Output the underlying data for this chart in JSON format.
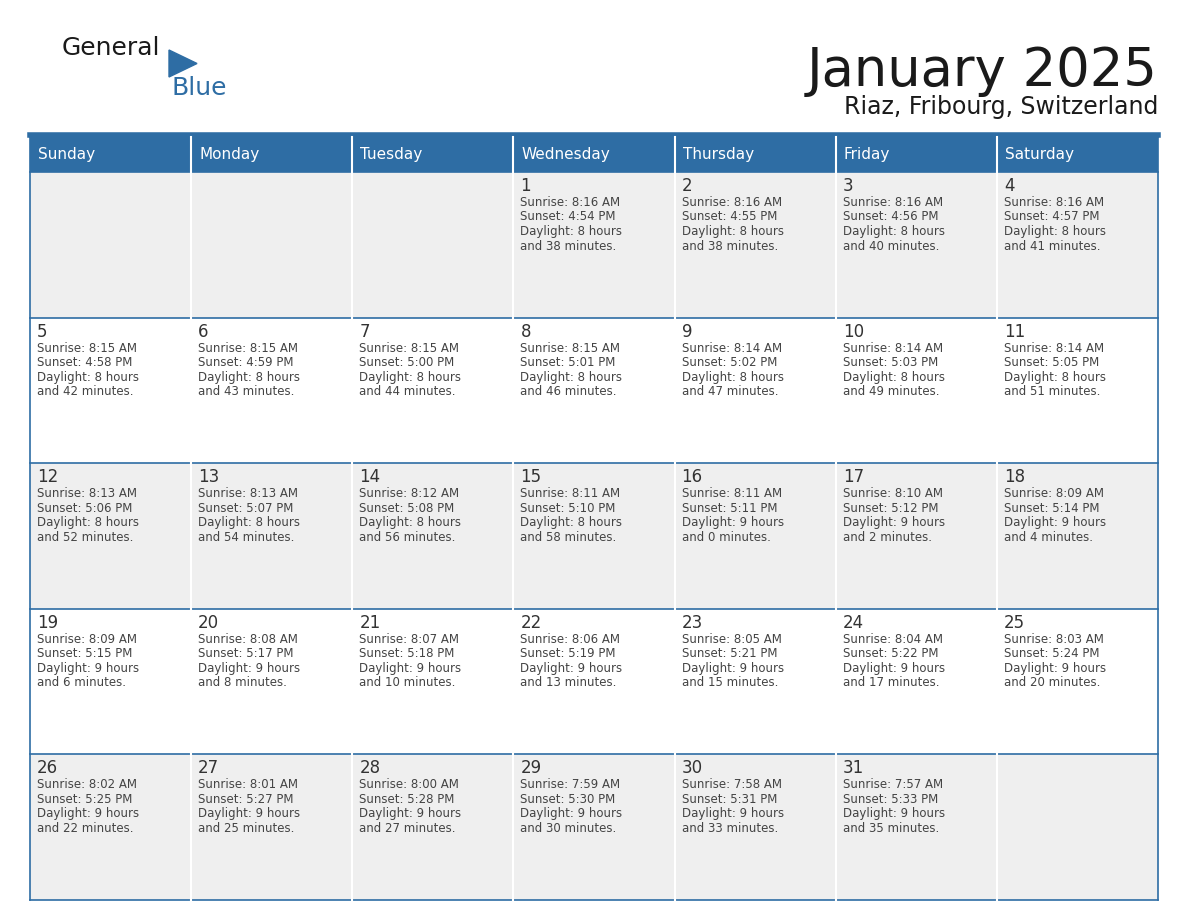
{
  "title": "January 2025",
  "subtitle": "Riaz, Fribourg, Switzerland",
  "days_of_week": [
    "Sunday",
    "Monday",
    "Tuesday",
    "Wednesday",
    "Thursday",
    "Friday",
    "Saturday"
  ],
  "header_bg": "#2E6DA4",
  "header_text": "#FFFFFF",
  "cell_bg_odd": "#EFEFEF",
  "cell_bg_even": "#FFFFFF",
  "cell_border": "#2E6DA4",
  "day_number_color": "#333333",
  "cell_text_color": "#444444",
  "title_color": "#1a1a1a",
  "subtitle_color": "#1a1a1a",
  "logo_general_color": "#1a1a1a",
  "logo_blue_color": "#2E6DA4",
  "separator_color": "#2E6DA4",
  "calendar_data": [
    [
      null,
      null,
      null,
      {
        "day": 1,
        "sunrise": "8:16 AM",
        "sunset": "4:54 PM",
        "daylight": "8 hours",
        "daylight2": "and 38 minutes."
      },
      {
        "day": 2,
        "sunrise": "8:16 AM",
        "sunset": "4:55 PM",
        "daylight": "8 hours",
        "daylight2": "and 38 minutes."
      },
      {
        "day": 3,
        "sunrise": "8:16 AM",
        "sunset": "4:56 PM",
        "daylight": "8 hours",
        "daylight2": "and 40 minutes."
      },
      {
        "day": 4,
        "sunrise": "8:16 AM",
        "sunset": "4:57 PM",
        "daylight": "8 hours",
        "daylight2": "and 41 minutes."
      }
    ],
    [
      {
        "day": 5,
        "sunrise": "8:15 AM",
        "sunset": "4:58 PM",
        "daylight": "8 hours",
        "daylight2": "and 42 minutes."
      },
      {
        "day": 6,
        "sunrise": "8:15 AM",
        "sunset": "4:59 PM",
        "daylight": "8 hours",
        "daylight2": "and 43 minutes."
      },
      {
        "day": 7,
        "sunrise": "8:15 AM",
        "sunset": "5:00 PM",
        "daylight": "8 hours",
        "daylight2": "and 44 minutes."
      },
      {
        "day": 8,
        "sunrise": "8:15 AM",
        "sunset": "5:01 PM",
        "daylight": "8 hours",
        "daylight2": "and 46 minutes."
      },
      {
        "day": 9,
        "sunrise": "8:14 AM",
        "sunset": "5:02 PM",
        "daylight": "8 hours",
        "daylight2": "and 47 minutes."
      },
      {
        "day": 10,
        "sunrise": "8:14 AM",
        "sunset": "5:03 PM",
        "daylight": "8 hours",
        "daylight2": "and 49 minutes."
      },
      {
        "day": 11,
        "sunrise": "8:14 AM",
        "sunset": "5:05 PM",
        "daylight": "8 hours",
        "daylight2": "and 51 minutes."
      }
    ],
    [
      {
        "day": 12,
        "sunrise": "8:13 AM",
        "sunset": "5:06 PM",
        "daylight": "8 hours",
        "daylight2": "and 52 minutes."
      },
      {
        "day": 13,
        "sunrise": "8:13 AM",
        "sunset": "5:07 PM",
        "daylight": "8 hours",
        "daylight2": "and 54 minutes."
      },
      {
        "day": 14,
        "sunrise": "8:12 AM",
        "sunset": "5:08 PM",
        "daylight": "8 hours",
        "daylight2": "and 56 minutes."
      },
      {
        "day": 15,
        "sunrise": "8:11 AM",
        "sunset": "5:10 PM",
        "daylight": "8 hours",
        "daylight2": "and 58 minutes."
      },
      {
        "day": 16,
        "sunrise": "8:11 AM",
        "sunset": "5:11 PM",
        "daylight": "9 hours",
        "daylight2": "and 0 minutes."
      },
      {
        "day": 17,
        "sunrise": "8:10 AM",
        "sunset": "5:12 PM",
        "daylight": "9 hours",
        "daylight2": "and 2 minutes."
      },
      {
        "day": 18,
        "sunrise": "8:09 AM",
        "sunset": "5:14 PM",
        "daylight": "9 hours",
        "daylight2": "and 4 minutes."
      }
    ],
    [
      {
        "day": 19,
        "sunrise": "8:09 AM",
        "sunset": "5:15 PM",
        "daylight": "9 hours",
        "daylight2": "and 6 minutes."
      },
      {
        "day": 20,
        "sunrise": "8:08 AM",
        "sunset": "5:17 PM",
        "daylight": "9 hours",
        "daylight2": "and 8 minutes."
      },
      {
        "day": 21,
        "sunrise": "8:07 AM",
        "sunset": "5:18 PM",
        "daylight": "9 hours",
        "daylight2": "and 10 minutes."
      },
      {
        "day": 22,
        "sunrise": "8:06 AM",
        "sunset": "5:19 PM",
        "daylight": "9 hours",
        "daylight2": "and 13 minutes."
      },
      {
        "day": 23,
        "sunrise": "8:05 AM",
        "sunset": "5:21 PM",
        "daylight": "9 hours",
        "daylight2": "and 15 minutes."
      },
      {
        "day": 24,
        "sunrise": "8:04 AM",
        "sunset": "5:22 PM",
        "daylight": "9 hours",
        "daylight2": "and 17 minutes."
      },
      {
        "day": 25,
        "sunrise": "8:03 AM",
        "sunset": "5:24 PM",
        "daylight": "9 hours",
        "daylight2": "and 20 minutes."
      }
    ],
    [
      {
        "day": 26,
        "sunrise": "8:02 AM",
        "sunset": "5:25 PM",
        "daylight": "9 hours",
        "daylight2": "and 22 minutes."
      },
      {
        "day": 27,
        "sunrise": "8:01 AM",
        "sunset": "5:27 PM",
        "daylight": "9 hours",
        "daylight2": "and 25 minutes."
      },
      {
        "day": 28,
        "sunrise": "8:00 AM",
        "sunset": "5:28 PM",
        "daylight": "9 hours",
        "daylight2": "and 27 minutes."
      },
      {
        "day": 29,
        "sunrise": "7:59 AM",
        "sunset": "5:30 PM",
        "daylight": "9 hours",
        "daylight2": "and 30 minutes."
      },
      {
        "day": 30,
        "sunrise": "7:58 AM",
        "sunset": "5:31 PM",
        "daylight": "9 hours",
        "daylight2": "and 33 minutes."
      },
      {
        "day": 31,
        "sunrise": "7:57 AM",
        "sunset": "5:33 PM",
        "daylight": "9 hours",
        "daylight2": "and 35 minutes."
      },
      null
    ]
  ]
}
